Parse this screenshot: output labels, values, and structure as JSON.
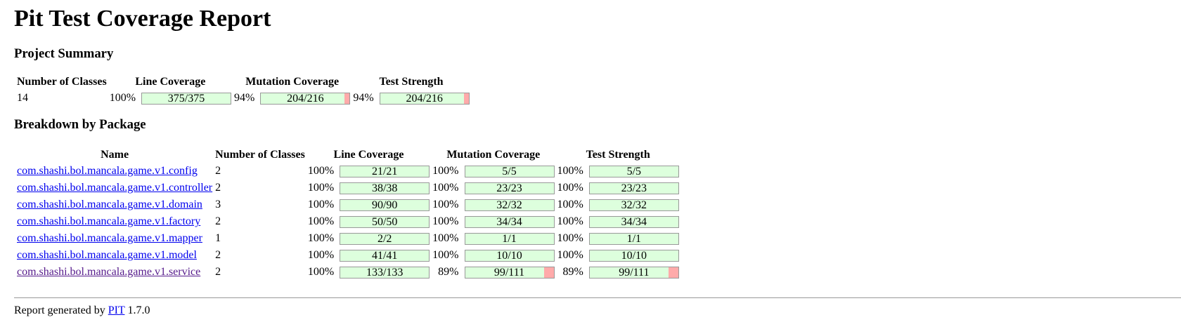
{
  "title": "Pit Test Coverage Report",
  "summary": {
    "heading": "Project Summary",
    "headers": {
      "classes": "Number of Classes",
      "line": "Line Coverage",
      "mutation": "Mutation Coverage",
      "strength": "Test Strength"
    },
    "num_classes": "14",
    "line": {
      "pct": "100%",
      "text": "375/375",
      "ratio": 1.0
    },
    "mutation": {
      "pct": "94%",
      "text": "204/216",
      "ratio": 0.9444
    },
    "strength": {
      "pct": "94%",
      "text": "204/216",
      "ratio": 0.9444
    }
  },
  "breakdown": {
    "heading": "Breakdown by Package",
    "headers": {
      "name": "Name",
      "classes": "Number of Classes",
      "line": "Line Coverage",
      "mutation": "Mutation Coverage",
      "strength": "Test Strength"
    },
    "rows": [
      {
        "name": "com.shashi.bol.mancala.game.v1.config",
        "classes": "2",
        "line": {
          "pct": "100%",
          "text": "21/21",
          "ratio": 1.0
        },
        "mutation": {
          "pct": "100%",
          "text": "5/5",
          "ratio": 1.0
        },
        "strength": {
          "pct": "100%",
          "text": "5/5",
          "ratio": 1.0
        }
      },
      {
        "name": "com.shashi.bol.mancala.game.v1.controller",
        "classes": "2",
        "line": {
          "pct": "100%",
          "text": "38/38",
          "ratio": 1.0
        },
        "mutation": {
          "pct": "100%",
          "text": "23/23",
          "ratio": 1.0
        },
        "strength": {
          "pct": "100%",
          "text": "23/23",
          "ratio": 1.0
        }
      },
      {
        "name": "com.shashi.bol.mancala.game.v1.domain",
        "classes": "3",
        "line": {
          "pct": "100%",
          "text": "90/90",
          "ratio": 1.0
        },
        "mutation": {
          "pct": "100%",
          "text": "32/32",
          "ratio": 1.0
        },
        "strength": {
          "pct": "100%",
          "text": "32/32",
          "ratio": 1.0
        }
      },
      {
        "name": "com.shashi.bol.mancala.game.v1.factory",
        "classes": "2",
        "line": {
          "pct": "100%",
          "text": "50/50",
          "ratio": 1.0
        },
        "mutation": {
          "pct": "100%",
          "text": "34/34",
          "ratio": 1.0
        },
        "strength": {
          "pct": "100%",
          "text": "34/34",
          "ratio": 1.0
        }
      },
      {
        "name": "com.shashi.bol.mancala.game.v1.mapper",
        "classes": "1",
        "line": {
          "pct": "100%",
          "text": "2/2",
          "ratio": 1.0
        },
        "mutation": {
          "pct": "100%",
          "text": "1/1",
          "ratio": 1.0
        },
        "strength": {
          "pct": "100%",
          "text": "1/1",
          "ratio": 1.0
        }
      },
      {
        "name": "com.shashi.bol.mancala.game.v1.model",
        "classes": "2",
        "line": {
          "pct": "100%",
          "text": "41/41",
          "ratio": 1.0
        },
        "mutation": {
          "pct": "100%",
          "text": "10/10",
          "ratio": 1.0
        },
        "strength": {
          "pct": "100%",
          "text": "10/10",
          "ratio": 1.0
        }
      },
      {
        "name": "com.shashi.bol.mancala.game.v1.service",
        "classes": "2",
        "visited": true,
        "line": {
          "pct": "100%",
          "text": "133/133",
          "ratio": 1.0
        },
        "mutation": {
          "pct": "89%",
          "text": "99/111",
          "ratio": 0.8919
        },
        "strength": {
          "pct": "89%",
          "text": "99/111",
          "ratio": 0.8919
        }
      }
    ]
  },
  "footer": {
    "prefix": "Report generated by",
    "link": "PIT",
    "version": "1.7.0"
  },
  "colors": {
    "covered": "#ddffdd",
    "uncovered": "#ffaaaa",
    "link": "#0000ee",
    "visited": "#551a8b"
  }
}
